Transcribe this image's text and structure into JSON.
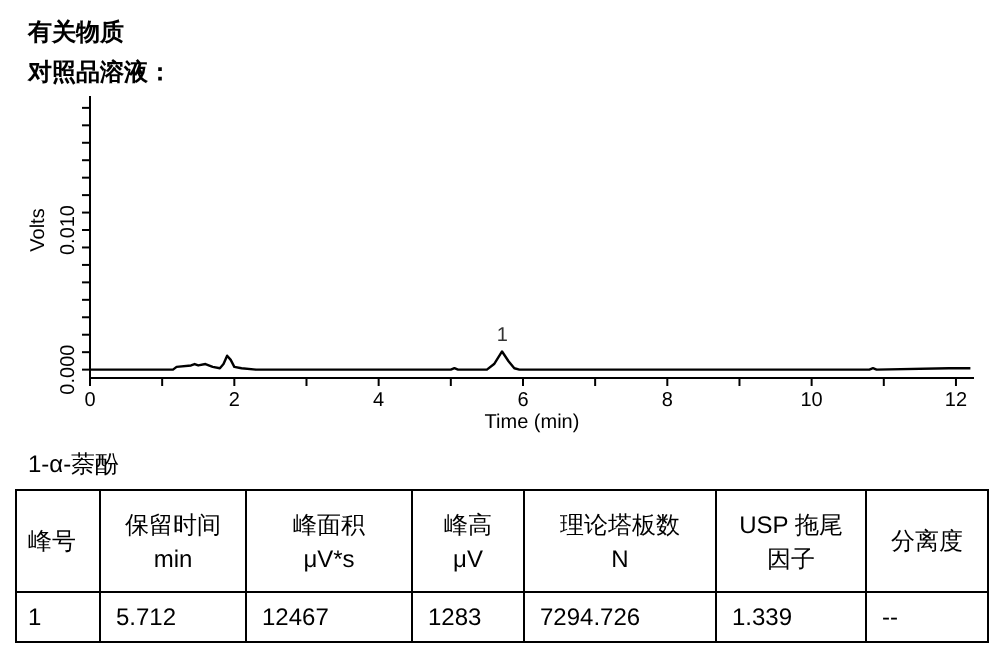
{
  "chart_data": {
    "type": "line",
    "title": "有关物质",
    "subtitle": "对照品溶液：",
    "xlabel": "Time (min)",
    "ylabel": "Volts",
    "x": [
      0,
      1.15,
      1.2,
      1.4,
      1.45,
      1.5,
      1.6,
      1.7,
      1.8,
      1.85,
      1.9,
      1.95,
      2.0,
      2.1,
      2.3,
      3.4,
      5.0,
      5.05,
      5.1,
      5.5,
      5.6,
      5.71,
      5.8,
      5.88,
      5.95,
      7.95,
      10.8,
      10.85,
      10.9,
      11.9,
      12.2
    ],
    "series": [
      {
        "color": "#000000",
        "values": [
          0,
          0,
          0.0002,
          0.0003,
          0.0004,
          0.0003,
          0.0004,
          0.0002,
          0.0001,
          0.0004,
          0.001,
          0.0007,
          0.0002,
          0.0001,
          0,
          0,
          0,
          0.0001,
          0,
          0,
          0.0004,
          0.0013,
          0.0006,
          0.0001,
          0,
          0,
          0,
          0.0001,
          0,
          0.0001,
          0.0001
        ]
      }
    ],
    "xlim": [
      0,
      12.25
    ],
    "ylim": [
      -0.0006,
      0.0196
    ],
    "xticks": [
      0,
      {
        "value": 1,
        "label": null
      },
      2,
      {
        "value": 3,
        "label": null
      },
      4,
      {
        "value": 5,
        "label": null
      },
      6,
      {
        "value": 7,
        "label": null
      },
      8,
      {
        "value": 9,
        "label": null
      },
      10,
      {
        "value": 11,
        "label": null
      },
      12
    ],
    "yticks": [
      {
        "value": 0,
        "label": "0.000"
      },
      {
        "value": 0.00125,
        "label": null
      },
      {
        "value": 0.0025,
        "label": null
      },
      {
        "value": 0.00375,
        "label": null
      },
      {
        "value": 0.005,
        "label": null
      },
      {
        "value": 0.00625,
        "label": null
      },
      {
        "value": 0.0075,
        "label": null
      },
      {
        "value": 0.00875,
        "label": null
      },
      {
        "value": 0.01,
        "label": "0.010"
      },
      {
        "value": 0.01125,
        "label": null
      },
      {
        "value": 0.0125,
        "label": null
      },
      {
        "value": 0.01375,
        "label": null
      },
      {
        "value": 0.015,
        "label": null
      },
      {
        "value": 0.01625,
        "label": null
      },
      {
        "value": 0.0175,
        "label": null
      },
      {
        "value": 0.01875,
        "label": null
      }
    ],
    "grid": false,
    "marker": "none",
    "line_style": "solid",
    "annotations": [
      {
        "text": "1",
        "x": 5.712,
        "y": 0.0013
      },
      "1-α-萘酚",
      "峰号",
      "保留时间\nmin",
      "峰面积\nμV*s",
      "峰高\nμV",
      "理论塔板数\nN",
      "USP 拖尾因子",
      "分离度",
      "1",
      "5.712",
      "12467",
      "1283",
      "7294.726",
      "1.339",
      "--"
    ]
  }
}
